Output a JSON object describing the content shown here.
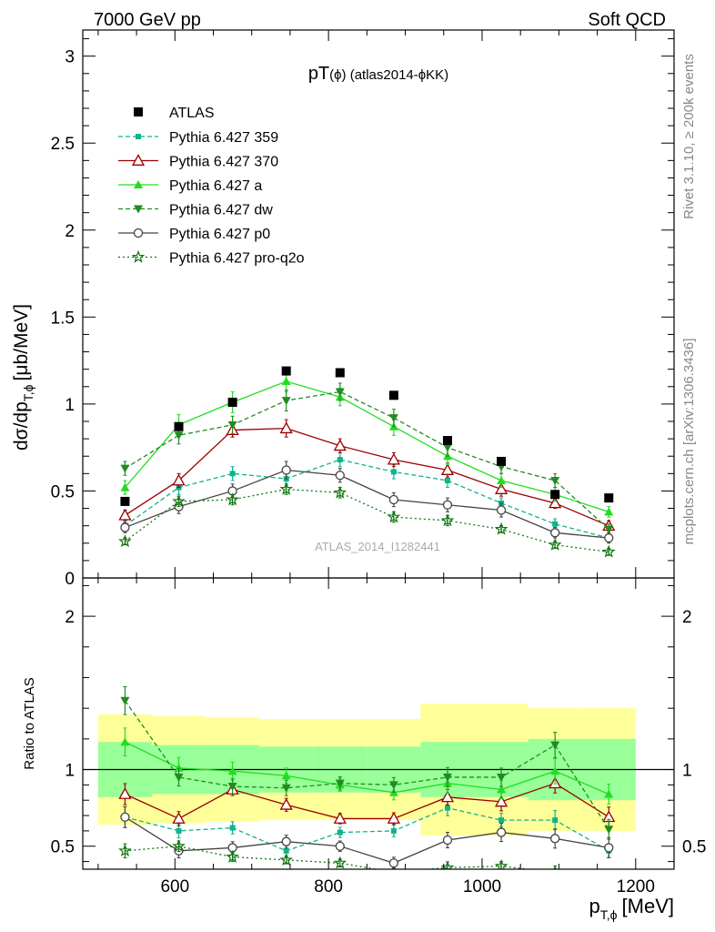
{
  "header": {
    "left": "7000 GeV pp",
    "right": "Soft QCD"
  },
  "side_labels": {
    "rivet": "Rivet 3.1.10, ≥ 200k events",
    "mcplots": "mcplots.cern.ch [arXiv:1306.3436]"
  },
  "chart_data": {
    "type": "line",
    "title_main": "pT",
    "title_sub": "(ϕ) (atlas2014-ϕKK)",
    "watermark": "ATLAS_2014_I1282441",
    "ylabel_main": "dσ/dp",
    "ylabel_sub": "T,ϕ",
    "ylabel_units": "[μb/MeV]",
    "xlabel_main": "p",
    "xlabel_sub": "T,ϕ",
    "xlabel_units": "[MeV]",
    "ratio_ylabel": "Ratio to ATLAS",
    "xlim": [
      480,
      1250
    ],
    "ylim": [
      0,
      3.15
    ],
    "ratio_ylim": [
      0.35,
      2.25
    ],
    "x_ticks": [
      "600",
      "800",
      "1000",
      "1200"
    ],
    "y_ticks": [
      "0",
      "0.5",
      "1",
      "1.5",
      "2",
      "2.5",
      "3"
    ],
    "ratio_y_ticks": [
      "0.5",
      "1",
      "2"
    ],
    "x": [
      535,
      605,
      675,
      745,
      815,
      885,
      955,
      1025,
      1095,
      1165
    ],
    "bin_edges": [
      500,
      570,
      640,
      710,
      780,
      850,
      920,
      990,
      1060,
      1130,
      1200
    ],
    "data": {
      "name": "ATLAS",
      "values": [
        0.44,
        0.87,
        1.01,
        1.19,
        1.18,
        1.05,
        0.79,
        0.67,
        0.48,
        0.46
      ],
      "band_inner": [
        0.18,
        0.16,
        0.16,
        0.15,
        0.15,
        0.15,
        0.18,
        0.18,
        0.2,
        0.2
      ],
      "band_outer": [
        0.36,
        0.35,
        0.34,
        0.33,
        0.33,
        0.33,
        0.43,
        0.43,
        0.4,
        0.4
      ]
    },
    "series": [
      {
        "name": "Pythia 6.427 359",
        "color": "#0fb38c",
        "dash": "5,3",
        "marker": "smallsquare",
        "values": [
          0.3,
          0.52,
          0.6,
          0.57,
          0.68,
          0.61,
          0.56,
          0.43,
          0.31,
          0.23
        ],
        "err": [
          0.03,
          0.04,
          0.04,
          0.04,
          0.04,
          0.04,
          0.04,
          0.03,
          0.03,
          0.02
        ]
      },
      {
        "name": "Pythia 6.427 370",
        "color": "#990000",
        "dash": "",
        "marker": "open-triangle-up",
        "values": [
          0.36,
          0.56,
          0.85,
          0.86,
          0.76,
          0.68,
          0.62,
          0.51,
          0.43,
          0.3
        ],
        "err": [
          0.03,
          0.04,
          0.04,
          0.05,
          0.04,
          0.04,
          0.04,
          0.04,
          0.03,
          0.03
        ]
      },
      {
        "name": "Pythia 6.427 a",
        "color": "#22dd22",
        "dash": "",
        "marker": "triangle-up",
        "values": [
          0.52,
          0.88,
          1.01,
          1.13,
          1.04,
          0.87,
          0.7,
          0.56,
          0.48,
          0.38
        ],
        "err": [
          0.04,
          0.06,
          0.06,
          0.06,
          0.05,
          0.05,
          0.05,
          0.04,
          0.04,
          0.03
        ]
      },
      {
        "name": "Pythia 6.427 dw",
        "color": "#228b22",
        "dash": "5,3",
        "marker": "triangle-down",
        "values": [
          0.63,
          0.82,
          0.88,
          1.02,
          1.07,
          0.92,
          0.75,
          0.64,
          0.56,
          0.28
        ],
        "err": [
          0.04,
          0.05,
          0.05,
          0.06,
          0.05,
          0.05,
          0.05,
          0.04,
          0.04,
          0.03
        ]
      },
      {
        "name": "Pythia 6.427 p0",
        "color": "#444444",
        "dash": "",
        "marker": "open-circle",
        "values": [
          0.29,
          0.41,
          0.5,
          0.62,
          0.59,
          0.45,
          0.42,
          0.39,
          0.26,
          0.23
        ],
        "err": [
          0.03,
          0.04,
          0.04,
          0.05,
          0.04,
          0.04,
          0.04,
          0.04,
          0.03,
          0.03
        ]
      },
      {
        "name": "Pythia 6.427 pro-q2o",
        "color": "#117711",
        "dash": "2,3",
        "marker": "star",
        "values": [
          0.21,
          0.44,
          0.45,
          0.51,
          0.49,
          0.35,
          0.33,
          0.28,
          0.19,
          0.15
        ],
        "err": [
          0.02,
          0.03,
          0.03,
          0.03,
          0.03,
          0.03,
          0.03,
          0.02,
          0.02,
          0.02
        ]
      }
    ],
    "ratios": [
      [
        0.69,
        0.6,
        0.62,
        0.47,
        0.59,
        0.6,
        0.75,
        0.67,
        0.67,
        0.47
      ],
      [
        0.84,
        0.68,
        0.87,
        0.77,
        0.68,
        0.68,
        0.82,
        0.79,
        0.91,
        0.69
      ],
      [
        1.18,
        1.01,
        0.99,
        0.96,
        0.9,
        0.85,
        0.91,
        0.87,
        0.99,
        0.84
      ],
      [
        1.45,
        0.95,
        0.89,
        0.88,
        0.91,
        0.9,
        0.95,
        0.95,
        1.16,
        0.61
      ],
      [
        0.69,
        0.47,
        0.49,
        0.53,
        0.5,
        0.39,
        0.54,
        0.59,
        0.55,
        0.49
      ],
      [
        0.47,
        0.5,
        0.43,
        0.41,
        0.39,
        0.33,
        0.36,
        0.37,
        0.33,
        0.28
      ]
    ]
  }
}
